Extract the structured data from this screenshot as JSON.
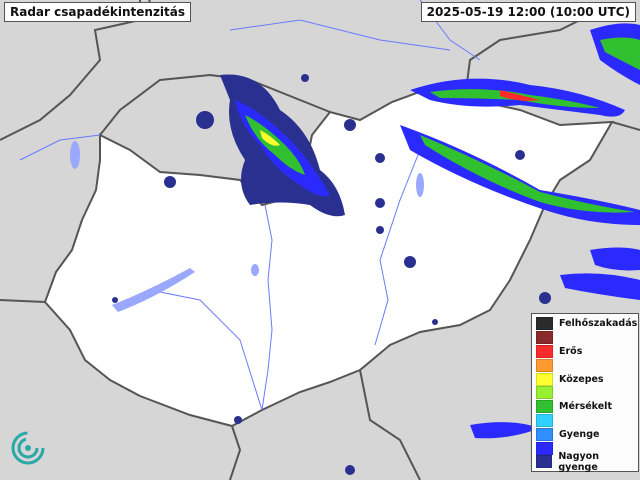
{
  "header": {
    "title": "Radar csapadékintenzitás",
    "timestamp": "2025-05-19 12:00 (10:00 UTC)"
  },
  "legend": {
    "items": [
      {
        "label": "Felhőszakadás",
        "color": "#2b2b2b"
      },
      {
        "label": "",
        "color": "#8b2a2a"
      },
      {
        "label": "Erős",
        "color": "#ff2a2a"
      },
      {
        "label": "",
        "color": "#ff9a30"
      },
      {
        "label": "Közepes",
        "color": "#ffff30"
      },
      {
        "label": "",
        "color": "#98f030"
      },
      {
        "label": "Mérsékelt",
        "color": "#30c030"
      },
      {
        "label": "",
        "color": "#30d0ff"
      },
      {
        "label": "Gyenge",
        "color": "#3090ff"
      },
      {
        "label": "",
        "color": "#2a2aff"
      },
      {
        "label": "Nagyon gyenge",
        "color": "#2a3090"
      }
    ]
  },
  "colors": {
    "background": "#d6d6d6",
    "country": "#ffffff",
    "border": "#555555",
    "river": "#6a7aff",
    "lake": "#9aa8ff"
  },
  "icons": {
    "logo": "met-service-logo"
  }
}
